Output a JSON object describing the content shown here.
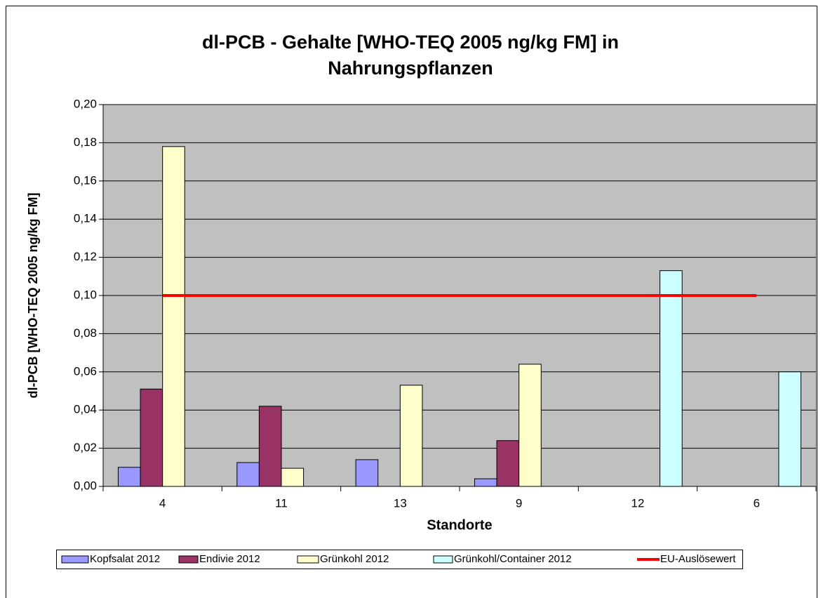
{
  "chart_data": {
    "type": "bar",
    "title": "dl-PCB - Gehalte [WHO-TEQ 2005 ng/kg FM] in Nahrungspflanzen",
    "x_label": "Standorte",
    "y_label": "dl-PCB [WHO-TEQ 2005 ng/kg FM]",
    "categories": [
      "4",
      "11",
      "13",
      "9",
      "12",
      "6"
    ],
    "series": [
      {
        "name": "Kopfsalat 2012",
        "color": "#9999ff",
        "values": [
          0.01,
          0.0125,
          0.014,
          0.004,
          null,
          null
        ]
      },
      {
        "name": "Endivie 2012",
        "color": "#993366",
        "values": [
          0.051,
          0.042,
          null,
          0.024,
          null,
          null
        ]
      },
      {
        "name": "Grünkohl 2012",
        "color": "#ffffcc",
        "values": [
          0.178,
          0.0095,
          0.053,
          0.064,
          null,
          null
        ]
      },
      {
        "name": "Grünkohl/Container 2012",
        "color": "#ccffff",
        "values": [
          null,
          null,
          null,
          null,
          0.113,
          0.06
        ]
      },
      {
        "name": "EU-Auslösewert",
        "color": "#ff0000",
        "type": "line",
        "values": [
          0.1,
          0.1,
          0.1,
          0.1,
          0.1,
          0.1
        ]
      }
    ],
    "ylim": [
      0,
      0.2
    ],
    "yticks": [
      {
        "value": 0,
        "label": "0,00"
      },
      {
        "value": 0.02,
        "label": "0,02"
      },
      {
        "value": 0.04,
        "label": "0,04"
      },
      {
        "value": 0.06,
        "label": "0,06"
      },
      {
        "value": 0.08,
        "label": "0,08"
      },
      {
        "value": 0.1,
        "label": "0,10"
      },
      {
        "value": 0.12,
        "label": "0,12"
      },
      {
        "value": 0.14,
        "label": "0,14"
      },
      {
        "value": 0.16,
        "label": "0,16"
      },
      {
        "value": 0.18,
        "label": "0,18"
      },
      {
        "value": 0.2,
        "label": "0,20"
      }
    ],
    "grid": true,
    "plot_background": "#c0c0c0",
    "legend": "bottom"
  }
}
